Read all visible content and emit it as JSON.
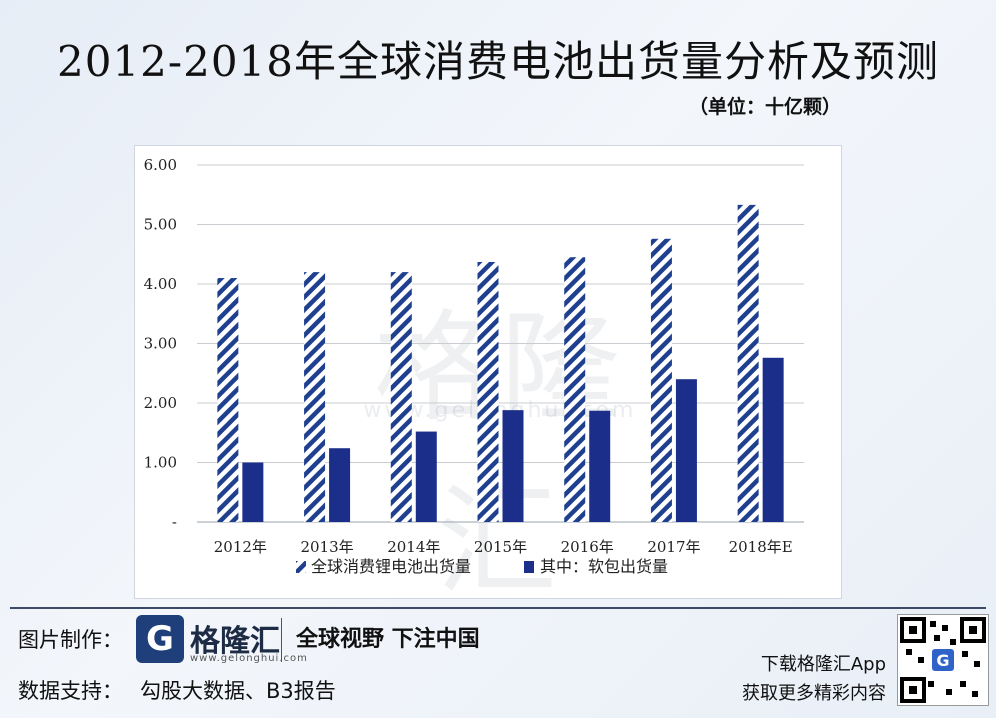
{
  "title": "2012-2018年全球消费电池出货量分析及预测",
  "unit": "（单位：十亿颗）",
  "watermark": {
    "main": "格隆汇",
    "sub": "www.gelonghui.com"
  },
  "chart_data": {
    "type": "bar",
    "categories": [
      "2012年",
      "2013年",
      "2014年",
      "2015年",
      "2016年",
      "2017年",
      "2018年E"
    ],
    "series": [
      {
        "name": "全球消费锂电池出货量",
        "values": [
          4.1,
          4.2,
          4.2,
          4.37,
          4.45,
          4.76,
          5.33
        ],
        "color": "#1f3f8f",
        "pattern": "diagonal-stripes"
      },
      {
        "name": "其中：软包出货量",
        "values": [
          1.0,
          1.24,
          1.52,
          1.88,
          1.87,
          2.4,
          2.76
        ],
        "color": "#1b2f8a",
        "pattern": "solid"
      }
    ],
    "yticks": [
      "-",
      "1.00",
      "2.00",
      "3.00",
      "4.00",
      "5.00",
      "6.00"
    ],
    "ylim": [
      0,
      6
    ],
    "grid": true,
    "legend_position": "bottom"
  },
  "footer": {
    "made_by_label": "图片制作：",
    "logo_letter": "G",
    "logo_name": "格隆汇",
    "logo_url": "www.gelonghui.com",
    "slogan": "全球视野 下注中国",
    "data_support_label": "数据支持：",
    "data_support_value": "勾股大数据、B3报告",
    "app_line1": "下载格隆汇App",
    "app_line2": "获取更多精彩内容"
  }
}
